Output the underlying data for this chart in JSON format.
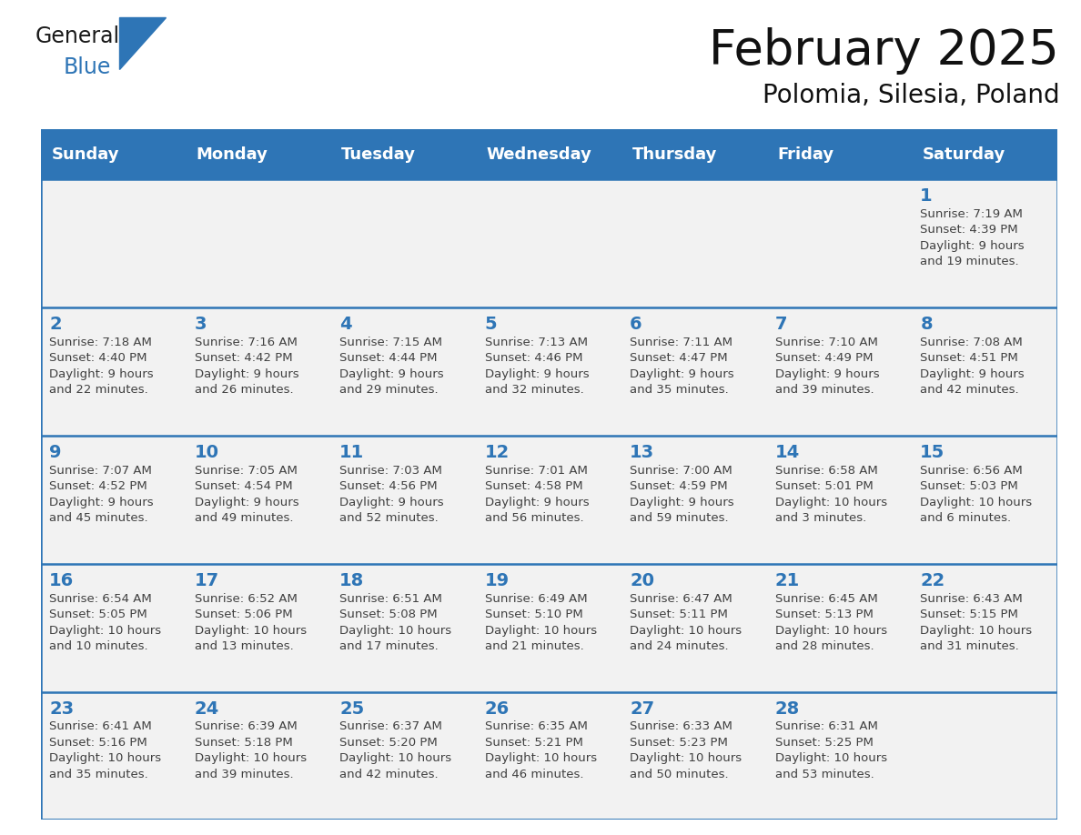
{
  "title": "February 2025",
  "subtitle": "Polomia, Silesia, Poland",
  "header_color": "#2E75B6",
  "header_text_color": "#FFFFFF",
  "cell_bg_color": "#F2F2F2",
  "cell_border_color": "#2E75B6",
  "day_number_color": "#2E75B6",
  "info_text_color": "#404040",
  "days_of_week": [
    "Sunday",
    "Monday",
    "Tuesday",
    "Wednesday",
    "Thursday",
    "Friday",
    "Saturday"
  ],
  "weeks": [
    [
      {
        "day": "",
        "info": ""
      },
      {
        "day": "",
        "info": ""
      },
      {
        "day": "",
        "info": ""
      },
      {
        "day": "",
        "info": ""
      },
      {
        "day": "",
        "info": ""
      },
      {
        "day": "",
        "info": ""
      },
      {
        "day": "1",
        "info": "Sunrise: 7:19 AM\nSunset: 4:39 PM\nDaylight: 9 hours\nand 19 minutes."
      }
    ],
    [
      {
        "day": "2",
        "info": "Sunrise: 7:18 AM\nSunset: 4:40 PM\nDaylight: 9 hours\nand 22 minutes."
      },
      {
        "day": "3",
        "info": "Sunrise: 7:16 AM\nSunset: 4:42 PM\nDaylight: 9 hours\nand 26 minutes."
      },
      {
        "day": "4",
        "info": "Sunrise: 7:15 AM\nSunset: 4:44 PM\nDaylight: 9 hours\nand 29 minutes."
      },
      {
        "day": "5",
        "info": "Sunrise: 7:13 AM\nSunset: 4:46 PM\nDaylight: 9 hours\nand 32 minutes."
      },
      {
        "day": "6",
        "info": "Sunrise: 7:11 AM\nSunset: 4:47 PM\nDaylight: 9 hours\nand 35 minutes."
      },
      {
        "day": "7",
        "info": "Sunrise: 7:10 AM\nSunset: 4:49 PM\nDaylight: 9 hours\nand 39 minutes."
      },
      {
        "day": "8",
        "info": "Sunrise: 7:08 AM\nSunset: 4:51 PM\nDaylight: 9 hours\nand 42 minutes."
      }
    ],
    [
      {
        "day": "9",
        "info": "Sunrise: 7:07 AM\nSunset: 4:52 PM\nDaylight: 9 hours\nand 45 minutes."
      },
      {
        "day": "10",
        "info": "Sunrise: 7:05 AM\nSunset: 4:54 PM\nDaylight: 9 hours\nand 49 minutes."
      },
      {
        "day": "11",
        "info": "Sunrise: 7:03 AM\nSunset: 4:56 PM\nDaylight: 9 hours\nand 52 minutes."
      },
      {
        "day": "12",
        "info": "Sunrise: 7:01 AM\nSunset: 4:58 PM\nDaylight: 9 hours\nand 56 minutes."
      },
      {
        "day": "13",
        "info": "Sunrise: 7:00 AM\nSunset: 4:59 PM\nDaylight: 9 hours\nand 59 minutes."
      },
      {
        "day": "14",
        "info": "Sunrise: 6:58 AM\nSunset: 5:01 PM\nDaylight: 10 hours\nand 3 minutes."
      },
      {
        "day": "15",
        "info": "Sunrise: 6:56 AM\nSunset: 5:03 PM\nDaylight: 10 hours\nand 6 minutes."
      }
    ],
    [
      {
        "day": "16",
        "info": "Sunrise: 6:54 AM\nSunset: 5:05 PM\nDaylight: 10 hours\nand 10 minutes."
      },
      {
        "day": "17",
        "info": "Sunrise: 6:52 AM\nSunset: 5:06 PM\nDaylight: 10 hours\nand 13 minutes."
      },
      {
        "day": "18",
        "info": "Sunrise: 6:51 AM\nSunset: 5:08 PM\nDaylight: 10 hours\nand 17 minutes."
      },
      {
        "day": "19",
        "info": "Sunrise: 6:49 AM\nSunset: 5:10 PM\nDaylight: 10 hours\nand 21 minutes."
      },
      {
        "day": "20",
        "info": "Sunrise: 6:47 AM\nSunset: 5:11 PM\nDaylight: 10 hours\nand 24 minutes."
      },
      {
        "day": "21",
        "info": "Sunrise: 6:45 AM\nSunset: 5:13 PM\nDaylight: 10 hours\nand 28 minutes."
      },
      {
        "day": "22",
        "info": "Sunrise: 6:43 AM\nSunset: 5:15 PM\nDaylight: 10 hours\nand 31 minutes."
      }
    ],
    [
      {
        "day": "23",
        "info": "Sunrise: 6:41 AM\nSunset: 5:16 PM\nDaylight: 10 hours\nand 35 minutes."
      },
      {
        "day": "24",
        "info": "Sunrise: 6:39 AM\nSunset: 5:18 PM\nDaylight: 10 hours\nand 39 minutes."
      },
      {
        "day": "25",
        "info": "Sunrise: 6:37 AM\nSunset: 5:20 PM\nDaylight: 10 hours\nand 42 minutes."
      },
      {
        "day": "26",
        "info": "Sunrise: 6:35 AM\nSunset: 5:21 PM\nDaylight: 10 hours\nand 46 minutes."
      },
      {
        "day": "27",
        "info": "Sunrise: 6:33 AM\nSunset: 5:23 PM\nDaylight: 10 hours\nand 50 minutes."
      },
      {
        "day": "28",
        "info": "Sunrise: 6:31 AM\nSunset: 5:25 PM\nDaylight: 10 hours\nand 53 minutes."
      },
      {
        "day": "",
        "info": ""
      }
    ]
  ],
  "logo_general_color": "#1a1a1a",
  "logo_blue_color": "#2E75B6",
  "title_fontsize": 38,
  "subtitle_fontsize": 20,
  "header_fontsize": 13,
  "day_number_fontsize": 14,
  "info_fontsize": 9.5
}
